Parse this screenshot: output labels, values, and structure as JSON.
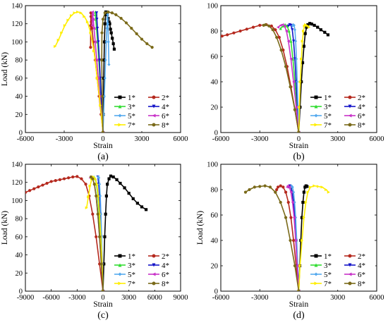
{
  "chart_data": [
    {
      "type": "line",
      "panel_label": "(a)",
      "xlabel": "Strain",
      "ylabel": "Load (kN)",
      "xlim": [
        -6000,
        6000
      ],
      "ylim": [
        0,
        140
      ],
      "xticks": [
        -6000,
        -3000,
        0,
        3000,
        6000
      ],
      "yticks": [
        0,
        20,
        40,
        60,
        80,
        100,
        120,
        140
      ],
      "legend_position": "bottom-right",
      "series": [
        {
          "name": "1*",
          "color": "#000000",
          "marker": "square",
          "x": [
            0,
            20,
            40,
            60,
            80,
            110,
            150,
            200,
            220,
            260,
            320,
            400,
            470,
            520,
            580,
            640,
            720,
            800,
            870
          ],
          "y": [
            0,
            20,
            40,
            60,
            80,
            100,
            120,
            130,
            133,
            133,
            130,
            126,
            122,
            120,
            114,
            110,
            104,
            98,
            92
          ]
        },
        {
          "name": "2*",
          "color": "#b5291e",
          "marker": "circle",
          "x": [
            0,
            -150,
            -300,
            -450,
            -600,
            -750,
            -850,
            -900,
            -930,
            -940,
            -950,
            -960
          ],
          "y": [
            0,
            20,
            40,
            60,
            80,
            100,
            115,
            122,
            128,
            132,
            118,
            94
          ]
        },
        {
          "name": "3*",
          "color": "#33dd33",
          "marker": "triangle-up",
          "x": [
            0,
            -80,
            -160,
            -240,
            -320,
            -420,
            -500,
            -560,
            -580,
            -590
          ],
          "y": [
            0,
            20,
            40,
            60,
            80,
            100,
            115,
            125,
            130,
            133
          ]
        },
        {
          "name": "4*",
          "color": "#1414c8",
          "marker": "triangle-down",
          "x": [
            0,
            -70,
            -140,
            -210,
            -280,
            -360,
            -430,
            -470,
            -490
          ],
          "y": [
            0,
            20,
            40,
            60,
            80,
            100,
            115,
            125,
            132
          ]
        },
        {
          "name": "5*",
          "color": "#55aaee",
          "marker": "diamond",
          "x": [
            0,
            50,
            100,
            150,
            200,
            250,
            300,
            330,
            350,
            360,
            380,
            420,
            460
          ],
          "y": [
            0,
            20,
            40,
            60,
            80,
            100,
            115,
            125,
            130,
            133,
            120,
            100,
            75
          ]
        },
        {
          "name": "6*",
          "color": "#c832c8",
          "marker": "triangle-left",
          "x": [
            0,
            -120,
            -240,
            -360,
            -480,
            -600,
            -700,
            -760,
            -800,
            -820,
            -830,
            -840
          ],
          "y": [
            0,
            20,
            40,
            60,
            80,
            100,
            115,
            125,
            130,
            133,
            125,
            118
          ]
        },
        {
          "name": "7*",
          "color": "#ffee00",
          "marker": "triangle-right",
          "x": [
            0,
            -200,
            -450,
            -700,
            -950,
            -1200,
            -1450,
            -1700,
            -1950,
            -2200,
            -2450,
            -2700,
            -2950,
            -3200,
            -3450,
            -3700
          ],
          "y": [
            0,
            30,
            60,
            90,
            110,
            122,
            128,
            132,
            133,
            132,
            129,
            124,
            118,
            110,
            102,
            95
          ]
        },
        {
          "name": "8*",
          "color": "#7a6a1a",
          "marker": "circle",
          "x": [
            0,
            -60,
            -100,
            -80,
            0,
            150,
            400,
            700,
            1000,
            1400,
            1800,
            2200,
            2600,
            3000,
            3400,
            3800
          ],
          "y": [
            0,
            40,
            80,
            110,
            125,
            132,
            133,
            132,
            130,
            126,
            121,
            115,
            109,
            103,
            98,
            94
          ]
        }
      ]
    },
    {
      "type": "line",
      "panel_label": "(b)",
      "xlabel": "Strain",
      "ylabel": "",
      "xlim": [
        -6000,
        6000
      ],
      "ylim": [
        0,
        100
      ],
      "xticks": [
        -6000,
        -3000,
        0,
        3000,
        6000
      ],
      "yticks": [
        0,
        20,
        40,
        60,
        80,
        100
      ],
      "legend_position": "bottom-right",
      "series": [
        {
          "name": "1*",
          "color": "#000000",
          "marker": "square",
          "x": [
            0,
            100,
            200,
            300,
            400,
            500,
            600,
            700,
            850,
            1000,
            1200,
            1450,
            1700,
            2000,
            2250
          ],
          "y": [
            0,
            20,
            40,
            55,
            68,
            78,
            83,
            85,
            86,
            85.5,
            84.5,
            83,
            81,
            79,
            77
          ]
        },
        {
          "name": "2*",
          "color": "#b5291e",
          "marker": "circle",
          "x": [
            0,
            -300,
            -600,
            -900,
            -1200,
            -1500,
            -1800,
            -2100,
            -2500,
            -3000,
            -3500,
            -4000,
            -4500,
            -5000,
            -5500,
            -5900
          ],
          "y": [
            0,
            18,
            36,
            52,
            65,
            75,
            81,
            84,
            85,
            84.5,
            83,
            81.5,
            80,
            78.5,
            77,
            76
          ]
        },
        {
          "name": "3*",
          "color": "#33dd33",
          "marker": "triangle-up",
          "x": [
            0,
            -150,
            -300,
            -450,
            -600,
            -750,
            -900,
            -1050,
            -1200,
            -1400
          ],
          "y": [
            0,
            20,
            40,
            58,
            72,
            80,
            84,
            85,
            84,
            82
          ]
        },
        {
          "name": "4*",
          "color": "#1414c8",
          "marker": "triangle-down",
          "x": [
            0,
            -100,
            -200,
            -300,
            -400,
            -500,
            -600,
            -700,
            -800
          ],
          "y": [
            0,
            20,
            40,
            58,
            72,
            81,
            84.5,
            85,
            84
          ]
        },
        {
          "name": "5*",
          "color": "#55aaee",
          "marker": "diamond",
          "x": [
            0,
            -60,
            -120,
            -180,
            -240,
            -300,
            -360,
            -420,
            -480
          ],
          "y": [
            0,
            20,
            40,
            58,
            72,
            81,
            84.5,
            85,
            84
          ]
        },
        {
          "name": "6*",
          "color": "#c832c8",
          "marker": "triangle-left",
          "x": [
            0,
            -200,
            -400,
            -600,
            -800,
            -950,
            -1100,
            -1250,
            -1400,
            -1600
          ],
          "y": [
            0,
            20,
            40,
            58,
            72,
            80,
            84,
            85,
            84.5,
            83
          ]
        },
        {
          "name": "7*",
          "color": "#ffee00",
          "marker": "triangle-right",
          "x": [
            0,
            50,
            120,
            200,
            280,
            360,
            440,
            520,
            600,
            700,
            800
          ],
          "y": [
            0,
            20,
            40,
            58,
            72,
            80,
            84,
            85,
            84.5,
            84,
            83
          ]
        },
        {
          "name": "8*",
          "color": "#7a6a1a",
          "marker": "circle",
          "x": [
            0,
            -300,
            -650,
            -1000,
            -1350,
            -1700,
            -2000,
            -2300,
            -2550,
            -2700
          ],
          "y": [
            0,
            18,
            36,
            52,
            65,
            75,
            81,
            84,
            85,
            84.5
          ]
        }
      ]
    },
    {
      "type": "line",
      "panel_label": "(c)",
      "xlabel": "Strain",
      "ylabel": "Load (kN)",
      "xlim": [
        -9000,
        9000
      ],
      "ylim": [
        0,
        140
      ],
      "xticks": [
        -9000,
        -6000,
        -3000,
        0,
        3000,
        6000,
        9000
      ],
      "yticks": [
        0,
        20,
        40,
        60,
        80,
        100,
        120,
        140
      ],
      "legend_position": "bottom-right",
      "series": [
        {
          "name": "1*",
          "color": "#000000",
          "marker": "square",
          "x": [
            0,
            100,
            200,
            300,
            400,
            500,
            700,
            900,
            1200,
            1600,
            2000,
            2500,
            3000,
            3500,
            4000,
            4500,
            5000
          ],
          "y": [
            0,
            30,
            60,
            85,
            105,
            118,
            124,
            127,
            126,
            123,
            119,
            114,
            108,
            102,
            97,
            93,
            90
          ]
        },
        {
          "name": "2*",
          "color": "#b5291e",
          "marker": "circle",
          "x": [
            0,
            -400,
            -800,
            -1200,
            -1600,
            -2000,
            -2500,
            -3000,
            -3500,
            -4000,
            -4500,
            -5000,
            -5500,
            -6000,
            -6500,
            -7000,
            -7500,
            -8000,
            -8500,
            -9000
          ],
          "y": [
            0,
            30,
            60,
            85,
            105,
            118,
            124,
            126.5,
            126,
            125,
            124,
            123,
            122,
            121,
            119,
            117,
            115,
            113,
            111,
            109
          ]
        },
        {
          "name": "3*",
          "color": "#33dd33",
          "marker": "triangle-up",
          "x": [
            0,
            -150,
            -300,
            -450,
            -600,
            -750,
            -900,
            -1050,
            -1200
          ],
          "y": [
            0,
            30,
            60,
            85,
            105,
            118,
            124,
            126,
            125
          ]
        },
        {
          "name": "4*",
          "color": "#1414c8",
          "marker": "triangle-down",
          "x": [
            0,
            -100,
            -200,
            -300,
            -400,
            -500,
            -600
          ],
          "y": [
            0,
            30,
            60,
            85,
            105,
            118,
            126
          ]
        },
        {
          "name": "5*",
          "color": "#55aaee",
          "marker": "diamond",
          "x": [
            0,
            -80,
            -160,
            -240,
            -320,
            -400,
            -480,
            -560
          ],
          "y": [
            0,
            30,
            60,
            85,
            105,
            118,
            125,
            126
          ]
        },
        {
          "name": "6*",
          "color": "#c832c8",
          "marker": "triangle-left",
          "x": [
            0,
            -200,
            -400,
            -600,
            -800,
            -1000,
            -1200,
            -1400,
            -1500
          ],
          "y": [
            0,
            30,
            60,
            85,
            105,
            118,
            124,
            126,
            125
          ]
        },
        {
          "name": "7*",
          "color": "#ffee00",
          "marker": "triangle-right",
          "x": [
            0,
            -100,
            -250,
            -400,
            -550,
            -700,
            -900,
            -1100,
            -1300,
            -1500,
            -1700,
            -1900
          ],
          "y": [
            0,
            30,
            60,
            85,
            105,
            118,
            124,
            126,
            124,
            116,
            104,
            92
          ]
        },
        {
          "name": "8*",
          "color": "#7a6a1a",
          "marker": "circle",
          "x": [
            0,
            -200,
            -400,
            -600,
            -800,
            -1000,
            -1200,
            -1400
          ],
          "y": [
            0,
            30,
            60,
            85,
            105,
            118,
            124,
            126
          ]
        }
      ]
    },
    {
      "type": "line",
      "panel_label": "(d)",
      "xlabel": "Strain",
      "ylabel": "Load (kN)",
      "xlim": [
        -6000,
        6000
      ],
      "ylim": [
        0,
        100
      ],
      "xticks": [
        -6000,
        -3000,
        0,
        3000,
        6000
      ],
      "yticks": [
        0,
        20,
        40,
        60,
        80,
        100
      ],
      "legend_position": "bottom-right",
      "series": [
        {
          "name": "1*",
          "color": "#000000",
          "marker": "square",
          "x": [
            0,
            80,
            160,
            240,
            320,
            400,
            480,
            560,
            640
          ],
          "y": [
            0,
            20,
            40,
            58,
            70,
            78,
            82,
            83,
            82.5
          ]
        },
        {
          "name": "2*",
          "color": "#b5291e",
          "marker": "circle",
          "x": [
            0,
            -200,
            -400,
            -600,
            -800,
            -1000,
            -1200,
            -1400,
            -1600,
            -1700,
            -1800
          ],
          "y": [
            0,
            20,
            40,
            58,
            70,
            78,
            82,
            83,
            82,
            80,
            78
          ]
        },
        {
          "name": "3*",
          "color": "#33dd33",
          "marker": "triangle-up",
          "x": [
            0,
            -100,
            -200,
            -300,
            -400,
            -500,
            -600,
            -650
          ],
          "y": [
            0,
            20,
            40,
            58,
            70,
            78,
            82,
            83
          ]
        },
        {
          "name": "4*",
          "color": "#1414c8",
          "marker": "triangle-down",
          "x": [
            0,
            -100,
            -200,
            -300,
            -400,
            -500,
            -600,
            -700,
            -750
          ],
          "y": [
            0,
            20,
            40,
            58,
            70,
            78,
            82,
            83,
            82
          ]
        },
        {
          "name": "5*",
          "color": "#55aaee",
          "marker": "diamond",
          "x": [
            0,
            -80,
            -160,
            -240,
            -320,
            -400,
            -480,
            -560,
            -620
          ],
          "y": [
            0,
            20,
            40,
            58,
            70,
            78,
            82,
            83,
            82
          ]
        },
        {
          "name": "6*",
          "color": "#c832c8",
          "marker": "triangle-left",
          "x": [
            0,
            -120,
            -240,
            -360,
            -480,
            -600,
            -720,
            -840,
            -900
          ],
          "y": [
            0,
            20,
            40,
            58,
            70,
            78,
            82,
            83,
            82
          ]
        },
        {
          "name": "7*",
          "color": "#ffee00",
          "marker": "triangle-right",
          "x": [
            0,
            100,
            250,
            400,
            550,
            700,
            900,
            1200,
            1500,
            1800,
            2100,
            2300
          ],
          "y": [
            0,
            20,
            40,
            58,
            70,
            78,
            82,
            83,
            82.5,
            82,
            80,
            78
          ]
        },
        {
          "name": "8*",
          "color": "#7a6a1a",
          "marker": "circle",
          "x": [
            0,
            -300,
            -650,
            -1000,
            -1400,
            -1800,
            -2200,
            -2600,
            -3000,
            -3400,
            -3800,
            -4100
          ],
          "y": [
            0,
            20,
            40,
            58,
            70,
            78,
            82,
            83,
            82.5,
            82,
            80,
            78
          ]
        }
      ]
    }
  ]
}
